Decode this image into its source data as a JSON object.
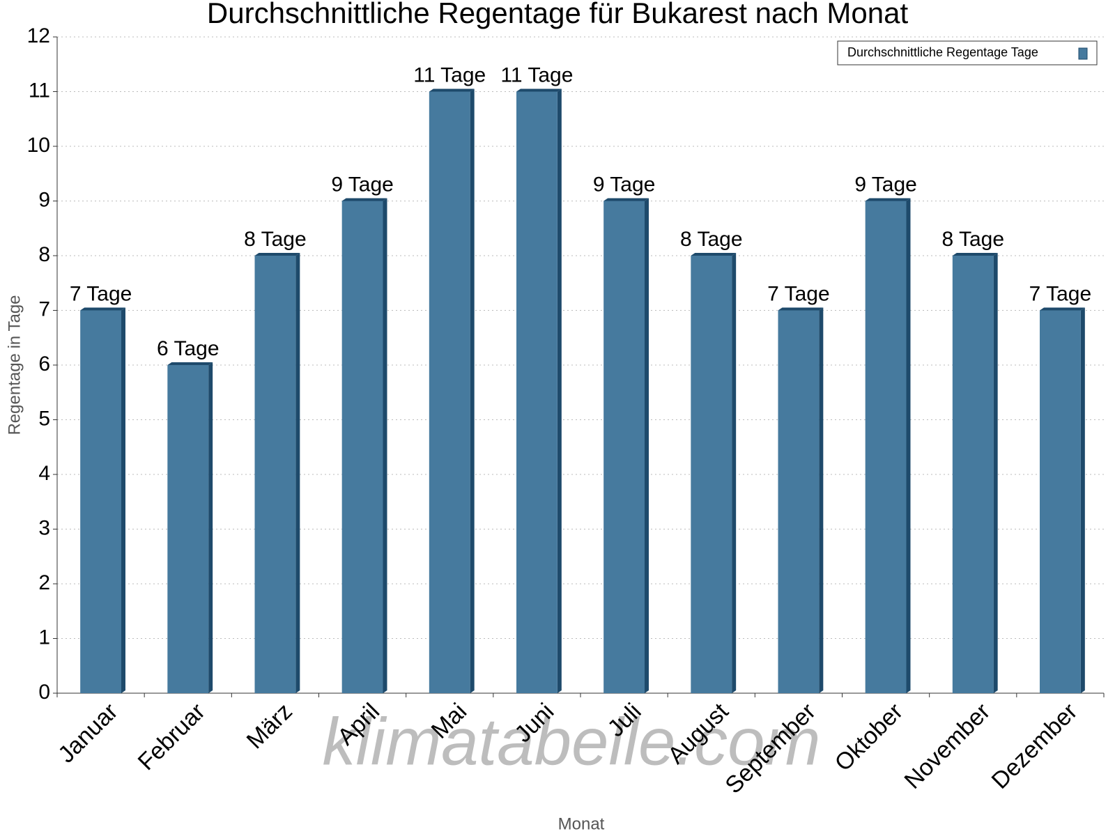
{
  "chart_data": {
    "type": "bar",
    "title": "Durchschnittliche Regentage für Bukarest nach Monat",
    "x_label": "Monat",
    "y_label": "Regentage in Tage",
    "watermark": "klimatabelle.com",
    "categories": [
      "Januar",
      "Februar",
      "März",
      "April",
      "Mai",
      "Juni",
      "Juli",
      "August",
      "September",
      "Oktober",
      "November",
      "Dezember"
    ],
    "series": [
      {
        "name": "Durchschnittliche Regentage Tage",
        "color": "#467a9e",
        "values": [
          7,
          6,
          8,
          9,
          11,
          11,
          9,
          8,
          7,
          9,
          8,
          7
        ],
        "value_labels": [
          "7 Tage",
          "6 Tage",
          "8 Tage",
          "9 Tage",
          "11 Tage",
          "11 Tage",
          "9 Tage",
          "8 Tage",
          "7 Tage",
          "9 Tage",
          "8 Tage",
          "7 Tage"
        ]
      }
    ],
    "ylim": [
      0,
      12
    ],
    "yticks": [
      0,
      1,
      2,
      3,
      4,
      5,
      6,
      7,
      8,
      9,
      10,
      11,
      12
    ],
    "grid": true,
    "legend": "top-right"
  }
}
